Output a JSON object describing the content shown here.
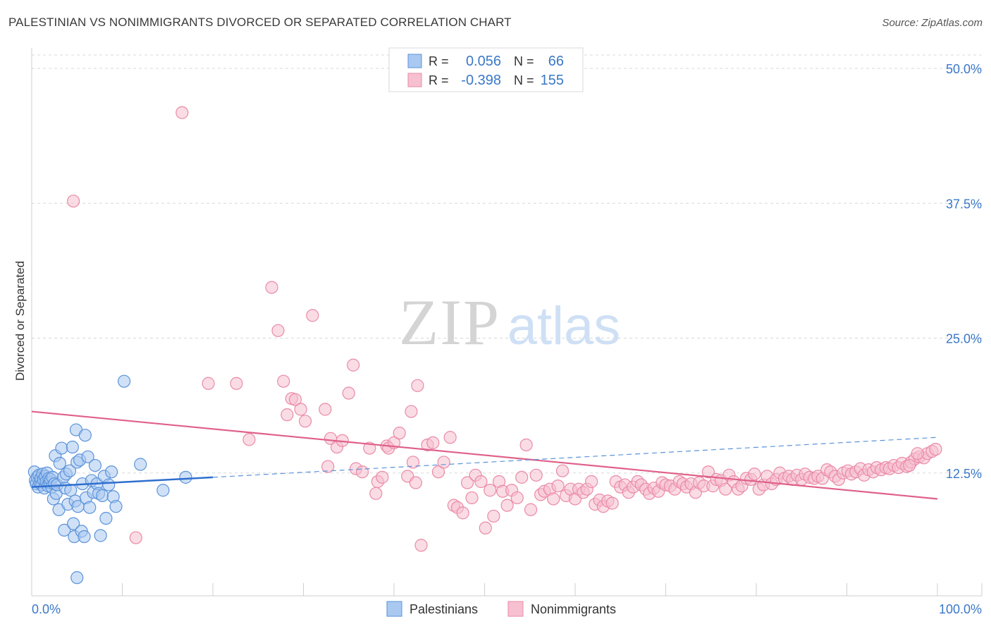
{
  "title": "PALESTINIAN VS NONIMMIGRANTS DIVORCED OR SEPARATED CORRELATION CHART",
  "source": "Source: ZipAtlas.com",
  "watermark": {
    "zip": "ZIP",
    "atlas": "atlas"
  },
  "colors": {
    "blue_fill": "#a9c9f0",
    "blue_stroke": "#5b93da",
    "blue_line": "#2f6fcf",
    "pink_fill": "#f6c0d0",
    "pink_stroke": "#ea8aa8",
    "pink_line": "#e0608a",
    "axis_label": "#3a78c9",
    "grid": "#d8d8d8"
  },
  "legend_box": {
    "rows": [
      {
        "r_label": "R =",
        "r_value": "0.056",
        "n_label": "N =",
        "n_value": "66"
      },
      {
        "r_label": "R =",
        "r_value": "-0.398",
        "n_label": "N =",
        "n_value": "155"
      }
    ]
  },
  "chart_data": {
    "type": "scatter",
    "title": "PALESTINIAN VS NONIMMIGRANTS DIVORCED OR SEPARATED CORRELATION CHART",
    "xlabel": "",
    "ylabel": "Divorced or Separated",
    "xlim": [
      0,
      100
    ],
    "ylim": [
      0,
      52
    ],
    "x_tick_labels": [
      "0.0%",
      "100.0%"
    ],
    "y_ticks": [
      12.5,
      25.0,
      37.5,
      50.0
    ],
    "y_tick_labels": [
      "12.5%",
      "25.0%",
      "37.5%",
      "50.0%"
    ],
    "grid": "horizontal dashed",
    "legend_position": "bottom-center",
    "series": [
      {
        "name": "Palestinians",
        "r": 0.056,
        "n": 66,
        "trend_solid": [
          [
            0,
            11.2
          ],
          [
            20,
            12.1
          ]
        ],
        "trend_dashed": [
          [
            20,
            12.1
          ],
          [
            100,
            15.8
          ]
        ],
        "points": [
          [
            0.3,
            12.6
          ],
          [
            0.4,
            11.8
          ],
          [
            0.5,
            11.5
          ],
          [
            0.6,
            12.1
          ],
          [
            0.7,
            11.2
          ],
          [
            0.8,
            12.3
          ],
          [
            0.9,
            11.6
          ],
          [
            1.0,
            12.0
          ],
          [
            1.1,
            11.4
          ],
          [
            1.2,
            12.4
          ],
          [
            1.3,
            11.9
          ],
          [
            1.4,
            11.1
          ],
          [
            1.5,
            12.2
          ],
          [
            1.6,
            11.7
          ],
          [
            1.7,
            12.5
          ],
          [
            1.8,
            11.3
          ],
          [
            1.9,
            12.0
          ],
          [
            2.0,
            11.6
          ],
          [
            2.1,
            11.9
          ],
          [
            2.2,
            11.2
          ],
          [
            2.3,
            12.1
          ],
          [
            2.4,
            10.1
          ],
          [
            2.5,
            11.5
          ],
          [
            2.6,
            14.1
          ],
          [
            2.7,
            10.6
          ],
          [
            2.8,
            11.4
          ],
          [
            3.0,
            9.1
          ],
          [
            3.1,
            13.4
          ],
          [
            3.3,
            14.8
          ],
          [
            3.5,
            12.1
          ],
          [
            3.6,
            7.2
          ],
          [
            3.7,
            11.1
          ],
          [
            3.8,
            12.4
          ],
          [
            4.0,
            9.6
          ],
          [
            4.2,
            12.7
          ],
          [
            4.3,
            10.9
          ],
          [
            4.5,
            14.9
          ],
          [
            4.6,
            7.8
          ],
          [
            4.7,
            6.6
          ],
          [
            4.8,
            9.9
          ],
          [
            4.9,
            16.5
          ],
          [
            5.0,
            13.5
          ],
          [
            5.1,
            9.4
          ],
          [
            5.3,
            13.7
          ],
          [
            5.5,
            7.1
          ],
          [
            5.6,
            11.5
          ],
          [
            5.8,
            6.6
          ],
          [
            5.9,
            16.0
          ],
          [
            6.0,
            10.2
          ],
          [
            6.2,
            14.0
          ],
          [
            6.4,
            9.3
          ],
          [
            6.6,
            11.8
          ],
          [
            6.8,
            10.7
          ],
          [
            7.0,
            13.2
          ],
          [
            7.2,
            11.5
          ],
          [
            7.4,
            10.6
          ],
          [
            7.6,
            6.7
          ],
          [
            7.8,
            10.4
          ],
          [
            8.0,
            12.2
          ],
          [
            8.2,
            8.3
          ],
          [
            8.5,
            11.4
          ],
          [
            8.8,
            12.6
          ],
          [
            9.0,
            10.3
          ],
          [
            9.3,
            9.4
          ],
          [
            10.2,
            21.0
          ],
          [
            12.0,
            13.3
          ]
        ],
        "extra_points": [
          [
            5.0,
            2.8
          ],
          [
            14.5,
            10.9
          ],
          [
            17.0,
            12.1
          ]
        ]
      },
      {
        "name": "Nonimmigrants",
        "r": -0.398,
        "n": 155,
        "trend_solid": [
          [
            0,
            18.2
          ],
          [
            100,
            10.1
          ]
        ],
        "points": [
          [
            4.6,
            37.7
          ],
          [
            11.5,
            6.5
          ],
          [
            16.6,
            45.9
          ],
          [
            19.5,
            20.8
          ],
          [
            22.6,
            20.8
          ],
          [
            24.0,
            15.6
          ],
          [
            26.5,
            29.7
          ],
          [
            27.2,
            25.7
          ],
          [
            27.8,
            21.0
          ],
          [
            28.2,
            17.9
          ],
          [
            28.7,
            19.4
          ],
          [
            29.1,
            19.3
          ],
          [
            29.7,
            18.4
          ],
          [
            30.2,
            17.3
          ],
          [
            31.0,
            27.1
          ],
          [
            32.4,
            18.4
          ],
          [
            32.7,
            13.1
          ],
          [
            33.0,
            15.7
          ],
          [
            33.7,
            14.9
          ],
          [
            34.3,
            15.5
          ],
          [
            35.0,
            19.9
          ],
          [
            35.5,
            22.5
          ],
          [
            35.8,
            12.9
          ],
          [
            36.5,
            12.6
          ],
          [
            37.3,
            14.8
          ],
          [
            38.0,
            10.6
          ],
          [
            38.2,
            11.7
          ],
          [
            38.7,
            12.1
          ],
          [
            39.2,
            15.0
          ],
          [
            39.4,
            14.8
          ],
          [
            40.0,
            15.3
          ],
          [
            40.6,
            16.2
          ],
          [
            41.5,
            12.2
          ],
          [
            41.9,
            18.2
          ],
          [
            42.1,
            13.5
          ],
          [
            42.4,
            11.6
          ],
          [
            42.6,
            20.6
          ],
          [
            43.0,
            5.8
          ],
          [
            43.7,
            15.1
          ],
          [
            44.3,
            15.3
          ],
          [
            44.9,
            12.6
          ],
          [
            45.5,
            13.5
          ],
          [
            46.2,
            15.8
          ],
          [
            46.6,
            9.5
          ],
          [
            47.0,
            9.3
          ],
          [
            47.6,
            8.8
          ],
          [
            48.1,
            11.6
          ],
          [
            48.6,
            10.2
          ],
          [
            49.0,
            12.3
          ],
          [
            49.6,
            11.7
          ],
          [
            50.1,
            7.4
          ],
          [
            50.6,
            10.9
          ],
          [
            51.0,
            8.5
          ],
          [
            51.6,
            11.7
          ],
          [
            52.0,
            10.8
          ],
          [
            52.5,
            9.5
          ],
          [
            53.0,
            10.9
          ],
          [
            53.6,
            10.2
          ],
          [
            54.1,
            12.1
          ],
          [
            54.6,
            15.1
          ],
          [
            55.1,
            9.1
          ],
          [
            55.7,
            12.3
          ],
          [
            56.2,
            10.5
          ],
          [
            56.6,
            10.8
          ],
          [
            57.2,
            11.0
          ],
          [
            57.6,
            10.1
          ],
          [
            58.1,
            11.3
          ],
          [
            58.6,
            12.7
          ],
          [
            59.0,
            10.4
          ],
          [
            59.5,
            11.0
          ],
          [
            60.0,
            10.1
          ],
          [
            60.4,
            11.0
          ],
          [
            60.9,
            10.7
          ],
          [
            61.3,
            11.0
          ],
          [
            61.8,
            11.7
          ],
          [
            62.2,
            9.6
          ],
          [
            62.7,
            10.0
          ],
          [
            63.1,
            9.4
          ],
          [
            63.6,
            9.9
          ],
          [
            64.1,
            9.7
          ],
          [
            64.5,
            11.7
          ],
          [
            65.0,
            11.2
          ],
          [
            65.5,
            11.4
          ],
          [
            65.9,
            10.7
          ],
          [
            66.4,
            11.2
          ],
          [
            66.9,
            11.7
          ],
          [
            67.3,
            11.4
          ],
          [
            67.8,
            11.0
          ],
          [
            68.2,
            10.6
          ],
          [
            68.7,
            11.1
          ],
          [
            69.2,
            10.8
          ],
          [
            69.6,
            11.6
          ],
          [
            70.0,
            11.4
          ],
          [
            70.5,
            11.3
          ],
          [
            71.0,
            11.0
          ],
          [
            71.5,
            11.7
          ],
          [
            71.9,
            11.5
          ],
          [
            72.3,
            11.2
          ],
          [
            72.8,
            11.5
          ],
          [
            73.3,
            10.7
          ],
          [
            73.7,
            11.6
          ],
          [
            74.2,
            11.3
          ],
          [
            74.7,
            12.6
          ],
          [
            75.2,
            11.3
          ],
          [
            75.6,
            11.9
          ],
          [
            76.1,
            11.8
          ],
          [
            76.6,
            11.0
          ],
          [
            77.0,
            12.3
          ],
          [
            77.5,
            11.7
          ],
          [
            78.0,
            11.0
          ],
          [
            78.4,
            11.3
          ],
          [
            78.9,
            12.0
          ],
          [
            79.4,
            11.9
          ],
          [
            79.8,
            12.4
          ],
          [
            80.3,
            11.0
          ],
          [
            80.8,
            11.4
          ],
          [
            81.2,
            12.2
          ],
          [
            81.7,
            11.5
          ],
          [
            82.2,
            11.9
          ],
          [
            82.6,
            12.5
          ],
          [
            83.1,
            12.0
          ],
          [
            83.6,
            12.2
          ],
          [
            84.0,
            11.9
          ],
          [
            84.5,
            12.3
          ],
          [
            85.0,
            11.9
          ],
          [
            85.4,
            12.4
          ],
          [
            85.9,
            12.1
          ],
          [
            86.4,
            12.0
          ],
          [
            86.8,
            12.2
          ],
          [
            87.3,
            12.0
          ],
          [
            87.8,
            12.8
          ],
          [
            88.2,
            12.6
          ],
          [
            88.7,
            12.2
          ],
          [
            89.1,
            11.9
          ],
          [
            89.6,
            12.5
          ],
          [
            90.1,
            12.7
          ],
          [
            90.5,
            12.4
          ],
          [
            91.0,
            12.6
          ],
          [
            91.5,
            12.9
          ],
          [
            91.9,
            12.3
          ],
          [
            92.4,
            12.8
          ],
          [
            92.9,
            12.6
          ],
          [
            93.3,
            13.0
          ],
          [
            93.8,
            12.8
          ],
          [
            94.3,
            13.0
          ],
          [
            94.7,
            12.9
          ],
          [
            95.2,
            13.2
          ],
          [
            95.7,
            13.0
          ],
          [
            96.1,
            13.4
          ],
          [
            96.6,
            13.1
          ],
          [
            97.1,
            13.5
          ],
          [
            97.5,
            13.8
          ],
          [
            98.0,
            14.0
          ],
          [
            98.5,
            13.9
          ],
          [
            98.9,
            14.3
          ],
          [
            99.4,
            14.5
          ],
          [
            99.8,
            14.7
          ],
          [
            97.8,
            14.3
          ],
          [
            96.9,
            13.2
          ]
        ]
      }
    ]
  }
}
